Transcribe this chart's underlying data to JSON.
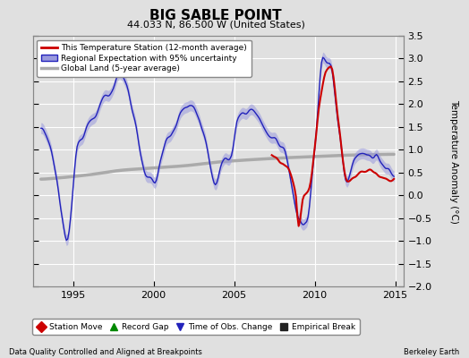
{
  "title": "BIG SABLE POINT",
  "subtitle": "44.033 N, 86.500 W (United States)",
  "ylabel": "Temperature Anomaly (°C)",
  "xlabel_left": "Data Quality Controlled and Aligned at Breakpoints",
  "xlabel_right": "Berkeley Earth",
  "ylim": [
    -2.0,
    3.5
  ],
  "xlim": [
    1992.5,
    2015.5
  ],
  "yticks": [
    -2,
    -1.5,
    -1,
    -0.5,
    0,
    0.5,
    1,
    1.5,
    2,
    2.5,
    3,
    3.5
  ],
  "xticks": [
    1995,
    2000,
    2005,
    2010,
    2015
  ],
  "bg_color": "#e0e0e0",
  "plot_bg_color": "#e0e0e0",
  "grid_color": "#ffffff",
  "regional_color": "#2222bb",
  "regional_fill_color": "#9999dd",
  "station_color": "#cc0000",
  "global_color": "#aaaaaa",
  "legend_labels": [
    "This Temperature Station (12-month average)",
    "Regional Expectation with 95% uncertainty",
    "Global Land (5-year average)"
  ],
  "bottom_legend": [
    "Station Move",
    "Record Gap",
    "Time of Obs. Change",
    "Empirical Break"
  ],
  "bottom_legend_colors": [
    "#cc0000",
    "#008800",
    "#2222bb",
    "#222222"
  ],
  "bottom_legend_markers": [
    "D",
    "^",
    "v",
    "s"
  ]
}
